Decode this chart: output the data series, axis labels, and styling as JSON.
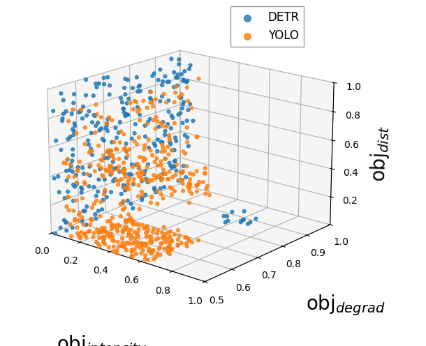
{
  "xlabel": "obj$_{intensity}$",
  "ylabel": "obj$_{degrad}$",
  "zlabel": "obj$_{dist}$",
  "xlim": [
    0.0,
    1.0
  ],
  "ylim": [
    0.5,
    1.0
  ],
  "zlim": [
    0.0,
    1.0
  ],
  "xticks": [
    0.0,
    0.2,
    0.4,
    0.6,
    0.8,
    1.0
  ],
  "yticks": [
    0.5,
    0.6,
    0.7,
    0.8,
    0.9,
    1.0
  ],
  "zticks": [
    0.2,
    0.4,
    0.6,
    0.8,
    1.0
  ],
  "detr_color": "#1f77b4",
  "yolo_color": "#ff7f0e",
  "marker_size": 12,
  "alpha": 0.8,
  "legend_fontsize": 12,
  "axis_label_fontsize_obj": 20,
  "axis_label_fontsize_sub": 13,
  "tick_fontsize": 10,
  "figsize": [
    6.1,
    4.96
  ],
  "dpi": 100,
  "elev": 18,
  "azim": -50
}
